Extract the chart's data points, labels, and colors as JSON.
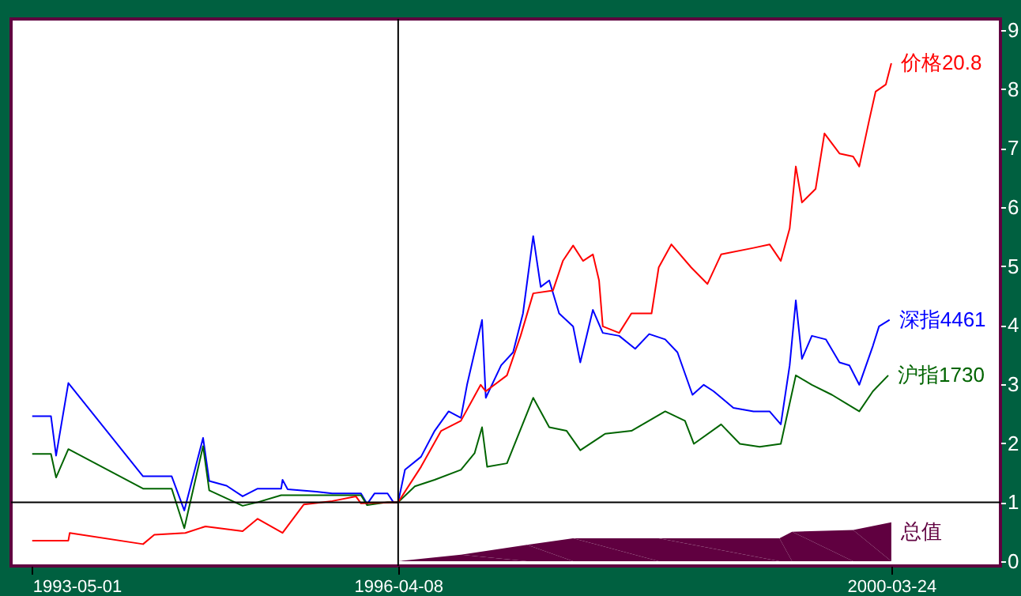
{
  "chart_data": {
    "type": "line",
    "xlim": [
      "1993-02-28",
      "2001-02-07"
    ],
    "xticks": [
      "1993-05-01",
      "1996-04-08",
      "2000-03-24"
    ],
    "ylim": [
      -0.08,
      9.19
    ],
    "yticks": [
      0,
      1,
      2,
      3,
      4,
      5,
      6,
      7,
      8,
      9
    ],
    "grid": false,
    "legend": false,
    "ref_lines": [
      {
        "axis": "x",
        "value": "1996-04-08",
        "label": null,
        "color": "#000000"
      },
      {
        "axis": "y",
        "value": 1,
        "label": null,
        "color": "#000000"
      }
    ],
    "series": [
      {
        "name": "总值",
        "type": "area",
        "color": "#600040",
        "x": [
          "1996-04-08",
          "1996-10-09",
          "1997-04-21",
          "1997-09-03",
          "1998-05-12",
          "1999-05-01",
          "1999-06-07",
          "1999-12-03",
          "2000-03-24"
        ],
        "values": [
          0,
          0.11,
          0.28,
          0.39,
          0.39,
          0.39,
          0.5,
          0.53,
          0.66
        ]
      },
      {
        "name": "深指4461",
        "color": "#0000ff",
        "x": [
          "1993-05-01",
          "1993-06-25",
          "1993-07-10",
          "1993-08-15",
          "1994-03-22",
          "1994-06-14",
          "1994-07-21",
          "1994-09-14",
          "1994-10-02",
          "1994-11-22",
          "1995-01-08",
          "1995-02-21",
          "1995-05-01",
          "1995-05-05",
          "1995-05-20",
          "1995-08-12",
          "1995-09-28",
          "1995-12-21",
          "1996-01-08",
          "1996-01-30",
          "1996-03-08",
          "1996-03-25",
          "1996-04-08",
          "1996-04-28",
          "1996-06-14",
          "1996-07-24",
          "1996-09-03",
          "1996-10-09",
          "1996-10-27",
          "1996-12-10",
          "1996-12-21",
          "1997-02-04",
          "1997-03-11",
          "1997-04-09",
          "1997-05-09",
          "1997-05-31",
          "1997-06-25",
          "1997-07-24",
          "1997-09-03",
          "1997-09-24",
          "1997-10-31",
          "1997-11-29",
          "1998-01-16",
          "1998-03-04",
          "1998-04-14",
          "1998-05-31",
          "1998-07-06",
          "1998-08-19",
          "1998-09-21",
          "1998-10-20",
          "1998-12-17",
          "1999-02-14",
          "1999-04-02",
          "1999-05-05",
          "1999-05-31",
          "1999-06-18",
          "1999-07-06",
          "1999-08-04",
          "1999-09-14",
          "1999-10-24",
          "1999-11-22",
          "1999-12-21",
          "2000-01-30",
          "2000-02-17",
          "2000-03-19"
        ],
        "values": [
          2.46,
          2.46,
          1.79,
          3.02,
          1.44,
          1.44,
          0.86,
          2.09,
          1.36,
          1.28,
          1.1,
          1.23,
          1.23,
          1.38,
          1.22,
          1.18,
          1.15,
          1.15,
          0.97,
          1.15,
          1.15,
          1.0,
          1.0,
          1.55,
          1.77,
          2.21,
          2.54,
          2.43,
          2.99,
          4.09,
          2.77,
          3.32,
          3.54,
          4.2,
          5.51,
          4.65,
          4.76,
          4.2,
          3.98,
          3.37,
          4.26,
          3.87,
          3.82,
          3.6,
          3.85,
          3.76,
          3.54,
          2.82,
          2.99,
          2.88,
          2.6,
          2.54,
          2.54,
          2.32,
          3.32,
          4.42,
          3.43,
          3.82,
          3.76,
          3.37,
          3.32,
          2.99,
          3.65,
          3.98,
          4.09
        ]
      },
      {
        "name": "沪指1730",
        "color": "#006400",
        "x": [
          "1993-05-01",
          "1993-06-25",
          "1993-07-10",
          "1993-08-15",
          "1994-03-22",
          "1994-06-14",
          "1994-07-21",
          "1994-09-14",
          "1994-10-02",
          "1995-01-08",
          "1995-02-21",
          "1995-05-01",
          "1995-12-21",
          "1996-01-08",
          "1996-03-08",
          "1996-04-08",
          "1996-05-27",
          "1996-07-24",
          "1996-10-09",
          "1996-11-18",
          "1996-12-10",
          "1996-12-25",
          "1997-02-21",
          "1997-05-09",
          "1997-06-25",
          "1997-08-15",
          "1997-09-24",
          "1997-12-06",
          "1998-02-21",
          "1998-05-31",
          "1998-07-28",
          "1998-08-23",
          "1998-11-11",
          "1999-01-05",
          "1999-03-04",
          "1999-05-05",
          "1999-06-18",
          "1999-08-04",
          "1999-10-02",
          "1999-12-21",
          "2000-01-30",
          "2000-03-15"
        ],
        "values": [
          1.82,
          1.82,
          1.42,
          1.9,
          1.23,
          1.23,
          0.56,
          1.95,
          1.2,
          0.94,
          1.0,
          1.12,
          1.12,
          0.95,
          1.0,
          1.0,
          1.27,
          1.38,
          1.55,
          1.83,
          2.27,
          1.6,
          1.66,
          2.77,
          2.27,
          2.21,
          1.88,
          2.16,
          2.21,
          2.54,
          2.38,
          1.99,
          2.32,
          1.99,
          1.94,
          1.99,
          3.15,
          2.99,
          2.82,
          2.54,
          2.88,
          3.15
        ]
      },
      {
        "name": "价格20.8",
        "color": "#ff0000",
        "x": [
          "1993-05-01",
          "1993-08-15",
          "1993-08-19",
          "1994-03-22",
          "1994-04-24",
          "1994-07-24",
          "1994-09-21",
          "1995-01-08",
          "1995-02-21",
          "1995-05-05",
          "1995-07-06",
          "1995-09-28",
          "1995-12-06",
          "1995-12-21",
          "1996-03-25",
          "1996-04-08",
          "1996-06-14",
          "1996-08-12",
          "1996-10-09",
          "1996-12-06",
          "1996-12-21",
          "1997-02-21",
          "1997-04-02",
          "1997-05-09",
          "1997-07-06",
          "1997-08-04",
          "1997-09-03",
          "1997-10-02",
          "1997-10-31",
          "1997-11-18",
          "1997-11-29",
          "1998-01-16",
          "1998-02-21",
          "1998-04-21",
          "1998-05-12",
          "1998-06-18",
          "1998-08-15",
          "1998-10-02",
          "1998-11-11",
          "1999-02-14",
          "1999-04-02",
          "1999-05-05",
          "1999-05-31",
          "1999-06-18",
          "1999-07-06",
          "1999-08-15",
          "1999-09-10",
          "1999-10-24",
          "1999-12-03",
          "1999-12-21",
          "2000-01-19",
          "2000-02-07",
          "2000-03-08",
          "2000-03-24"
        ],
        "values": [
          0.35,
          0.35,
          0.48,
          0.29,
          0.45,
          0.48,
          0.59,
          0.51,
          0.72,
          0.48,
          0.96,
          1.02,
          1.1,
          0.98,
          1.0,
          1.0,
          1.6,
          2.21,
          2.38,
          2.99,
          2.88,
          3.15,
          3.82,
          4.54,
          4.59,
          5.09,
          5.35,
          5.09,
          5.2,
          4.76,
          3.98,
          3.87,
          4.2,
          4.2,
          4.98,
          5.37,
          4.98,
          4.7,
          5.2,
          5.31,
          5.37,
          5.09,
          5.64,
          6.69,
          6.08,
          6.31,
          7.25,
          6.91,
          6.86,
          6.69,
          7.47,
          7.96,
          8.08,
          8.44
        ]
      }
    ]
  }
}
